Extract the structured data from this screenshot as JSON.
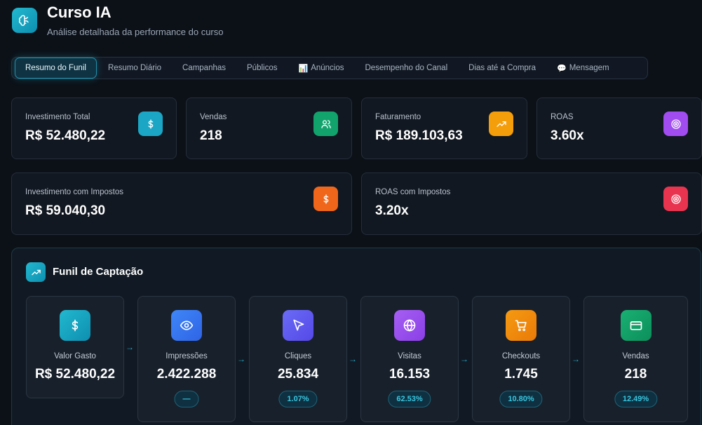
{
  "header": {
    "title": "Curso IA",
    "subtitle": "Análise detalhada da performance do curso",
    "logo_icon": "brain-icon"
  },
  "tabs": [
    {
      "label": "Resumo do Funil",
      "active": true
    },
    {
      "label": "Resumo Diário"
    },
    {
      "label": "Campanhas"
    },
    {
      "label": "Públicos"
    },
    {
      "label": "Anúncios",
      "emoji": "📊"
    },
    {
      "label": "Desempenho do Canal"
    },
    {
      "label": "Dias até a Compra"
    },
    {
      "label": "Mensagem",
      "emoji": "💬"
    }
  ],
  "metrics": [
    {
      "label": "Investimento Total",
      "value": "R$ 52.480,22",
      "icon": "dollar-icon",
      "color": "#1aa6c4"
    },
    {
      "label": "Vendas",
      "value": "218",
      "icon": "users-icon",
      "color": "#12a36d"
    },
    {
      "label": "Faturamento",
      "value": "R$ 189.103,63",
      "icon": "trending-up-icon",
      "color": "#f59e0b"
    },
    {
      "label": "ROAS",
      "value": "3.60x",
      "icon": "target-icon",
      "color": "#a04cf0"
    },
    {
      "label": "Investimento com Impostos",
      "value": "R$ 59.040,30",
      "icon": "dollar-icon",
      "color": "#f0661a"
    },
    {
      "label": "ROAS com Impostos",
      "value": "3.20x",
      "icon": "target-icon",
      "color": "#e9344f"
    }
  ],
  "funnel": {
    "title": "Funil de Captação",
    "title_icon": "trending-up-icon",
    "arrow": "→",
    "steps": [
      {
        "label": "Valor Gasto",
        "value": "R$ 52.480,22",
        "pill": "",
        "icon": "dollar-icon",
        "color": "#17a9c6"
      },
      {
        "label": "Impressões",
        "value": "2.422.288",
        "pill": "—",
        "icon": "eye-icon",
        "color": "#3b7cf6"
      },
      {
        "label": "Cliques",
        "value": "25.834",
        "pill": "1.07%",
        "icon": "cursor-icon",
        "color": "#6460f2"
      },
      {
        "label": "Visitas",
        "value": "16.153",
        "pill": "62.53%",
        "icon": "globe-icon",
        "color": "#9a55f0"
      },
      {
        "label": "Checkouts",
        "value": "1.745",
        "pill": "10.80%",
        "icon": "cart-icon",
        "color": "#f08a0c"
      },
      {
        "label": "Vendas",
        "value": "218",
        "pill": "12.49%",
        "icon": "credit-card-icon",
        "color": "#14a06a"
      }
    ]
  }
}
